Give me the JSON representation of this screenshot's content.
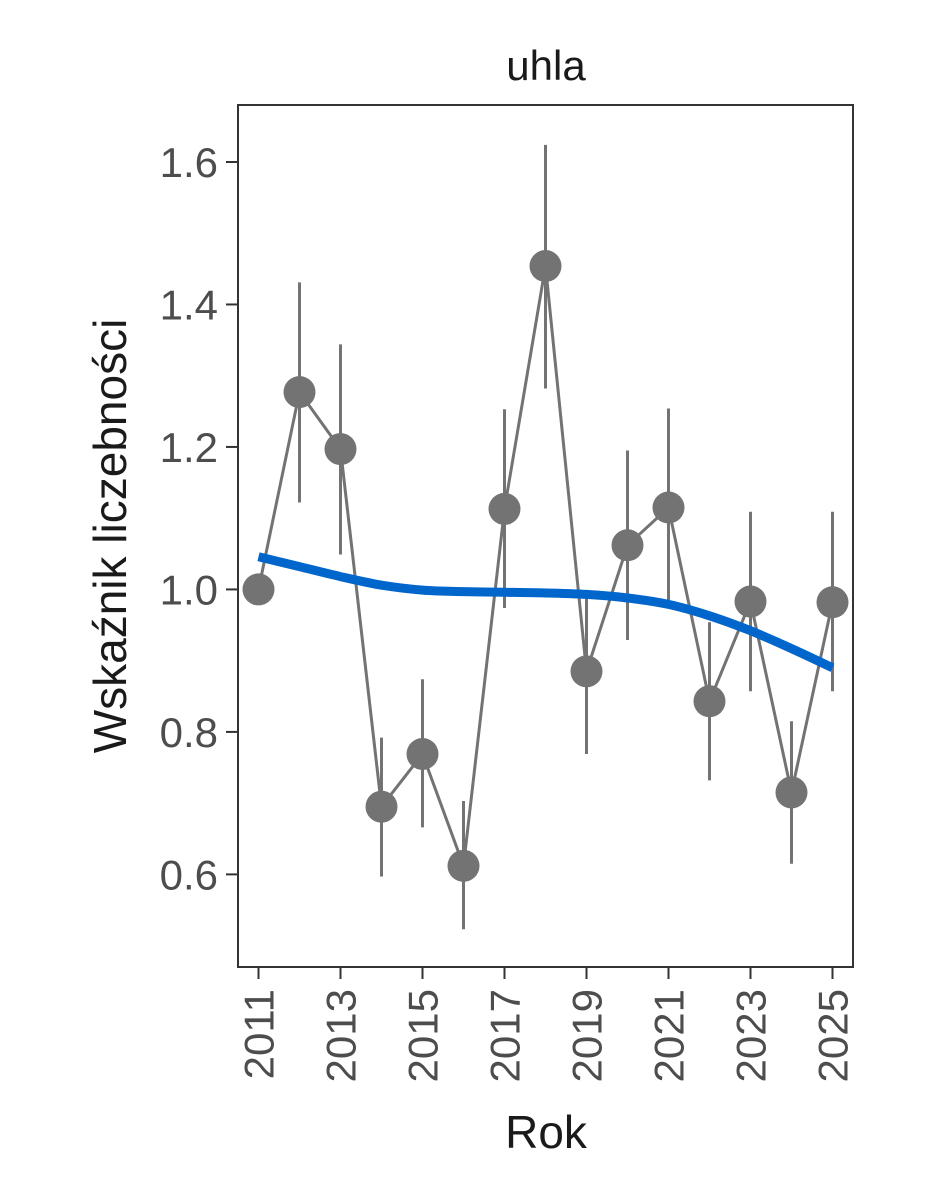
{
  "chart_data": {
    "type": "line",
    "title": "uhla",
    "xlabel": "Rok",
    "ylabel": "Wskaźnik liczebności",
    "xlim": [
      2010.5,
      2025.5
    ],
    "ylim": [
      0.47,
      1.68
    ],
    "x_ticks": [
      2011,
      2013,
      2015,
      2017,
      2019,
      2021,
      2023,
      2025
    ],
    "y_ticks": [
      0.6,
      0.8,
      1.0,
      1.2,
      1.4,
      1.6
    ],
    "y_tick_labels": [
      "0.6",
      "0.8",
      "1.0",
      "1.2",
      "1.4",
      "1.6"
    ],
    "grid": false,
    "series": [
      {
        "kind": "points_with_error_bars",
        "color": "#737373",
        "x": [
          2011,
          2012,
          2013,
          2014,
          2015,
          2016,
          2017,
          2018,
          2019,
          2020,
          2021,
          2022,
          2023,
          2024,
          2025
        ],
        "y": [
          1.0,
          1.277,
          1.197,
          0.695,
          0.769,
          0.612,
          1.113,
          1.454,
          0.885,
          1.062,
          1.115,
          0.843,
          0.983,
          0.715,
          0.982
        ],
        "lower": [
          1.0,
          1.122,
          1.049,
          0.597,
          0.666,
          0.523,
          0.974,
          1.282,
          0.769,
          0.929,
          0.985,
          0.732,
          0.857,
          0.615,
          0.857
        ],
        "upper": [
          1.0,
          1.431,
          1.344,
          0.792,
          0.874,
          0.703,
          1.253,
          1.624,
          0.999,
          1.195,
          1.254,
          0.954,
          1.109,
          0.815,
          1.109
        ]
      },
      {
        "kind": "trend",
        "color": "#0066cc",
        "x": [
          2011,
          2012,
          2013,
          2014,
          2015,
          2016,
          2017,
          2018,
          2019,
          2020,
          2021,
          2022,
          2023,
          2024,
          2025
        ],
        "y": [
          1.046,
          1.032,
          1.018,
          1.006,
          0.999,
          0.997,
          0.996,
          0.995,
          0.993,
          0.988,
          0.979,
          0.963,
          0.942,
          0.917,
          0.89
        ]
      }
    ]
  }
}
